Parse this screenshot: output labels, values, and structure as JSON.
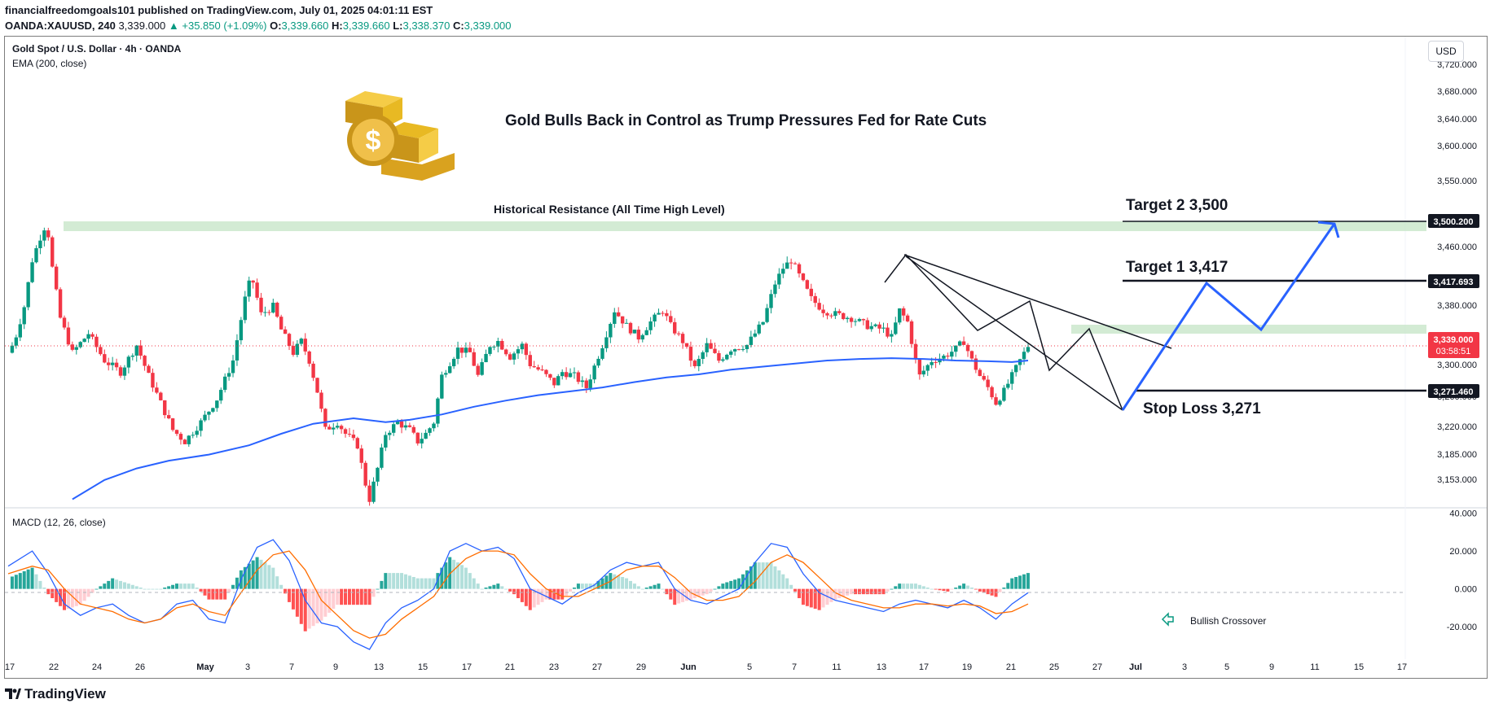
{
  "header": {
    "line1": "financialfreedomgoals101 published on TradingView.com, July 01, 2025 04:01:11 EST",
    "symbol": "OANDA:XAUUSD, 240",
    "last": "3,339.000",
    "change": "▲ +35.850 (+1.09%)",
    "o_label": "O:",
    "o": "3,339.660",
    "h_label": "H:",
    "h": "3,339.660",
    "l_label": "L:",
    "l": "3,338.370",
    "c_label": "C:",
    "c": "3,339.000"
  },
  "legend": {
    "title": "Gold Spot / U.S. Dollar · 4h · OANDA",
    "ema": "EMA (200, close)",
    "macd": "MACD (12, 26, close)"
  },
  "currency": "USD",
  "annotations": {
    "headline": "Gold Bulls Back in Control as Trump Pressures Fed for Rate Cuts",
    "resistance": "Historical Resistance (All Time High Level)",
    "target2": "Target 2  3,500",
    "target1": "Target 1  3,417",
    "stop_loss": "Stop Loss 3,271",
    "bullish_crossover": "Bullish Crossover"
  },
  "price_tags": {
    "target2": "3,500.200",
    "target1": "3,417.693",
    "current": "3,339.000",
    "countdown": "03:58:51",
    "stop_loss": "3,271.460"
  },
  "footer": {
    "brand": "TradingView"
  },
  "colors": {
    "up": "#089981",
    "down": "#f23645",
    "ema": "#2962ff",
    "macd_line": "#2962ff",
    "signal_line": "#ff6d00",
    "projection": "#2962ff",
    "resistance_zone": "#c8e6c9",
    "current_tag": "#f23645"
  },
  "chart_data": [
    {
      "type": "candlestick",
      "title": "Gold Spot / U.S. Dollar · 4h · OANDA",
      "y_ticks": [
        "3,720.000",
        "3,680.000",
        "3,640.000",
        "3,600.000",
        "3,550.000",
        "3,500.000",
        "3,460.000",
        "3,420.000",
        "3,380.000",
        "3,339.000",
        "3,300.000",
        "3,260.000",
        "3,220.000",
        "3,185.000",
        "3,153.000"
      ],
      "x_ticks": [
        "17",
        "22",
        "24",
        "26",
        "May",
        "3",
        "7",
        "9",
        "13",
        "15",
        "17",
        "21",
        "23",
        "27",
        "29",
        "Jun",
        "5",
        "7",
        "11",
        "13",
        "17",
        "19",
        "21",
        "25",
        "27",
        "Jul",
        "3",
        "5",
        "9",
        "11",
        "15",
        "17"
      ],
      "ylim": [
        3130,
        3740
      ],
      "price_path": [
        [
          0,
          3330
        ],
        [
          0.8,
          3345
        ],
        [
          2,
          3390
        ],
        [
          3,
          3450
        ],
        [
          4,
          3480
        ],
        [
          4.8,
          3500
        ],
        [
          5.5,
          3440
        ],
        [
          6.5,
          3375
        ],
        [
          8,
          3330
        ],
        [
          10,
          3355
        ],
        [
          12,
          3320
        ],
        [
          14,
          3305
        ],
        [
          16,
          3340
        ],
        [
          17.5,
          3300
        ],
        [
          19,
          3265
        ],
        [
          20.5,
          3230
        ],
        [
          22,
          3215
        ],
        [
          24,
          3240
        ],
        [
          26,
          3270
        ],
        [
          28,
          3320
        ],
        [
          29.5,
          3400
        ],
        [
          30.3,
          3430
        ],
        [
          31.5,
          3380
        ],
        [
          33,
          3390
        ],
        [
          34,
          3360
        ],
        [
          35.5,
          3330
        ],
        [
          36.5,
          3345
        ],
        [
          37.5,
          3320
        ],
        [
          38.5,
          3280
        ],
        [
          39.5,
          3230
        ],
        [
          41,
          3240
        ],
        [
          42,
          3225
        ],
        [
          43.5,
          3210
        ],
        [
          44.5,
          3160
        ],
        [
          45,
          3140
        ],
        [
          46,
          3180
        ],
        [
          47,
          3225
        ],
        [
          48.5,
          3240
        ],
        [
          50,
          3230
        ],
        [
          51,
          3215
        ],
        [
          52,
          3225
        ],
        [
          53,
          3240
        ],
        [
          54,
          3300
        ],
        [
          56,
          3335
        ],
        [
          57.5,
          3330
        ],
        [
          58.5,
          3300
        ],
        [
          60,
          3340
        ],
        [
          61,
          3345
        ],
        [
          62.5,
          3325
        ],
        [
          64,
          3340
        ],
        [
          65,
          3315
        ],
        [
          66.5,
          3305
        ],
        [
          68,
          3290
        ],
        [
          69,
          3305
        ],
        [
          70.5,
          3300
        ],
        [
          72,
          3285
        ],
        [
          74,
          3340
        ],
        [
          75.5,
          3385
        ],
        [
          77,
          3365
        ],
        [
          78.5,
          3350
        ],
        [
          80,
          3370
        ],
        [
          81.5,
          3385
        ],
        [
          82.5,
          3365
        ],
        [
          84,
          3345
        ],
        [
          85.5,
          3310
        ],
        [
          87,
          3340
        ],
        [
          88.5,
          3320
        ],
        [
          90,
          3335
        ],
        [
          92,
          3340
        ],
        [
          94,
          3370
        ],
        [
          95.5,
          3420
        ],
        [
          96.5,
          3440
        ],
        [
          97.5,
          3450
        ],
        [
          98.5,
          3430
        ],
        [
          100,
          3400
        ],
        [
          101.5,
          3385
        ],
        [
          103,
          3380
        ],
        [
          105,
          3375
        ],
        [
          107,
          3365
        ],
        [
          109,
          3360
        ],
        [
          110,
          3350
        ],
        [
          111,
          3385
        ],
        [
          112,
          3370
        ],
        [
          113,
          3320
        ],
        [
          113.5,
          3300
        ],
        [
          115,
          3320
        ],
        [
          116.5,
          3325
        ],
        [
          118,
          3335
        ],
        [
          119,
          3345
        ],
        [
          120,
          3320
        ],
        [
          121,
          3300
        ],
        [
          122,
          3285
        ],
        [
          123,
          3265
        ],
        [
          124,
          3280
        ],
        [
          125,
          3300
        ],
        [
          126,
          3320
        ],
        [
          127,
          3339
        ]
      ],
      "ema_200_path": [
        [
          8,
          3140
        ],
        [
          12,
          3165
        ],
        [
          16,
          3180
        ],
        [
          20,
          3190
        ],
        [
          25,
          3198
        ],
        [
          30,
          3210
        ],
        [
          34,
          3225
        ],
        [
          38,
          3238
        ],
        [
          43,
          3245
        ],
        [
          47,
          3240
        ],
        [
          50,
          3243
        ],
        [
          54,
          3250
        ],
        [
          58,
          3260
        ],
        [
          62,
          3268
        ],
        [
          66,
          3275
        ],
        [
          70,
          3280
        ],
        [
          74,
          3285
        ],
        [
          78,
          3292
        ],
        [
          82,
          3298
        ],
        [
          86,
          3302
        ],
        [
          90,
          3308
        ],
        [
          94,
          3312
        ],
        [
          98,
          3316
        ],
        [
          102,
          3320
        ],
        [
          106,
          3322
        ],
        [
          110,
          3323
        ],
        [
          114,
          3322
        ],
        [
          118,
          3320
        ],
        [
          122,
          3319
        ],
        [
          125,
          3318
        ],
        [
          127,
          3320
        ]
      ],
      "current_price": 3339.0,
      "resistance_level": 3500.2,
      "target_1": 3417.693,
      "target_2": 3500.2,
      "stop_loss": 3271.46,
      "projection_path": [
        [
          127,
          3275
        ],
        [
          131,
          3417
        ],
        [
          134,
          3345
        ],
        [
          140,
          3500
        ]
      ]
    },
    {
      "type": "line",
      "title": "MACD (12, 26, close)",
      "y_ticks": [
        "40.000",
        "20.000",
        "0.000",
        "-20.000"
      ],
      "ylim": [
        -35,
        42
      ],
      "series": [
        {
          "name": "MACD",
          "values": [
            [
              0,
              12
            ],
            [
              3,
              20
            ],
            [
              5,
              8
            ],
            [
              7,
              -8
            ],
            [
              9,
              -14
            ],
            [
              11,
              -10
            ],
            [
              13,
              -8
            ],
            [
              15,
              -14
            ],
            [
              17,
              -18
            ],
            [
              19,
              -16
            ],
            [
              21,
              -8
            ],
            [
              23,
              -6
            ],
            [
              25,
              -16
            ],
            [
              27,
              -18
            ],
            [
              29,
              5
            ],
            [
              31,
              22
            ],
            [
              33,
              26
            ],
            [
              35,
              15
            ],
            [
              37,
              -6
            ],
            [
              39,
              -18
            ],
            [
              41,
              -20
            ],
            [
              43,
              -28
            ],
            [
              45,
              -32
            ],
            [
              47,
              -18
            ],
            [
              49,
              -10
            ],
            [
              51,
              -6
            ],
            [
              53,
              0
            ],
            [
              55,
              20
            ],
            [
              57,
              24
            ],
            [
              59,
              20
            ],
            [
              61,
              22
            ],
            [
              63,
              16
            ],
            [
              65,
              0
            ],
            [
              67,
              -4
            ],
            [
              69,
              -8
            ],
            [
              71,
              -2
            ],
            [
              73,
              2
            ],
            [
              75,
              10
            ],
            [
              77,
              14
            ],
            [
              79,
              12
            ],
            [
              81,
              14
            ],
            [
              83,
              0
            ],
            [
              85,
              -6
            ],
            [
              87,
              -8
            ],
            [
              89,
              -4
            ],
            [
              91,
              0
            ],
            [
              93,
              14
            ],
            [
              95,
              24
            ],
            [
              97,
              22
            ],
            [
              99,
              8
            ],
            [
              101,
              -2
            ],
            [
              103,
              -6
            ],
            [
              105,
              -8
            ],
            [
              107,
              -10
            ],
            [
              109,
              -12
            ],
            [
              111,
              -8
            ],
            [
              113,
              -6
            ],
            [
              115,
              -8
            ],
            [
              117,
              -10
            ],
            [
              119,
              -6
            ],
            [
              121,
              -10
            ],
            [
              123,
              -16
            ],
            [
              125,
              -8
            ],
            [
              127,
              -2
            ]
          ]
        },
        {
          "name": "Signal",
          "values": [
            [
              0,
              8
            ],
            [
              3,
              12
            ],
            [
              5,
              10
            ],
            [
              7,
              0
            ],
            [
              9,
              -8
            ],
            [
              11,
              -10
            ],
            [
              13,
              -12
            ],
            [
              15,
              -16
            ],
            [
              17,
              -18
            ],
            [
              19,
              -16
            ],
            [
              21,
              -10
            ],
            [
              23,
              -8
            ],
            [
              25,
              -12
            ],
            [
              27,
              -14
            ],
            [
              29,
              -2
            ],
            [
              31,
              10
            ],
            [
              33,
              18
            ],
            [
              35,
              20
            ],
            [
              37,
              10
            ],
            [
              39,
              -6
            ],
            [
              41,
              -14
            ],
            [
              43,
              -22
            ],
            [
              45,
              -26
            ],
            [
              47,
              -24
            ],
            [
              49,
              -16
            ],
            [
              51,
              -10
            ],
            [
              53,
              -4
            ],
            [
              55,
              8
            ],
            [
              57,
              16
            ],
            [
              59,
              20
            ],
            [
              61,
              20
            ],
            [
              63,
              18
            ],
            [
              65,
              8
            ],
            [
              67,
              0
            ],
            [
              69,
              -4
            ],
            [
              71,
              -4
            ],
            [
              73,
              0
            ],
            [
              75,
              4
            ],
            [
              77,
              10
            ],
            [
              79,
              12
            ],
            [
              81,
              12
            ],
            [
              83,
              6
            ],
            [
              85,
              -2
            ],
            [
              87,
              -6
            ],
            [
              89,
              -6
            ],
            [
              91,
              -4
            ],
            [
              93,
              4
            ],
            [
              95,
              14
            ],
            [
              97,
              18
            ],
            [
              99,
              14
            ],
            [
              101,
              6
            ],
            [
              103,
              -2
            ],
            [
              105,
              -6
            ],
            [
              107,
              -8
            ],
            [
              109,
              -10
            ],
            [
              111,
              -10
            ],
            [
              113,
              -8
            ],
            [
              115,
              -8
            ],
            [
              117,
              -9
            ],
            [
              119,
              -8
            ],
            [
              121,
              -9
            ],
            [
              123,
              -13
            ],
            [
              125,
              -12
            ],
            [
              127,
              -8
            ]
          ]
        }
      ],
      "zero_level": 0
    }
  ]
}
